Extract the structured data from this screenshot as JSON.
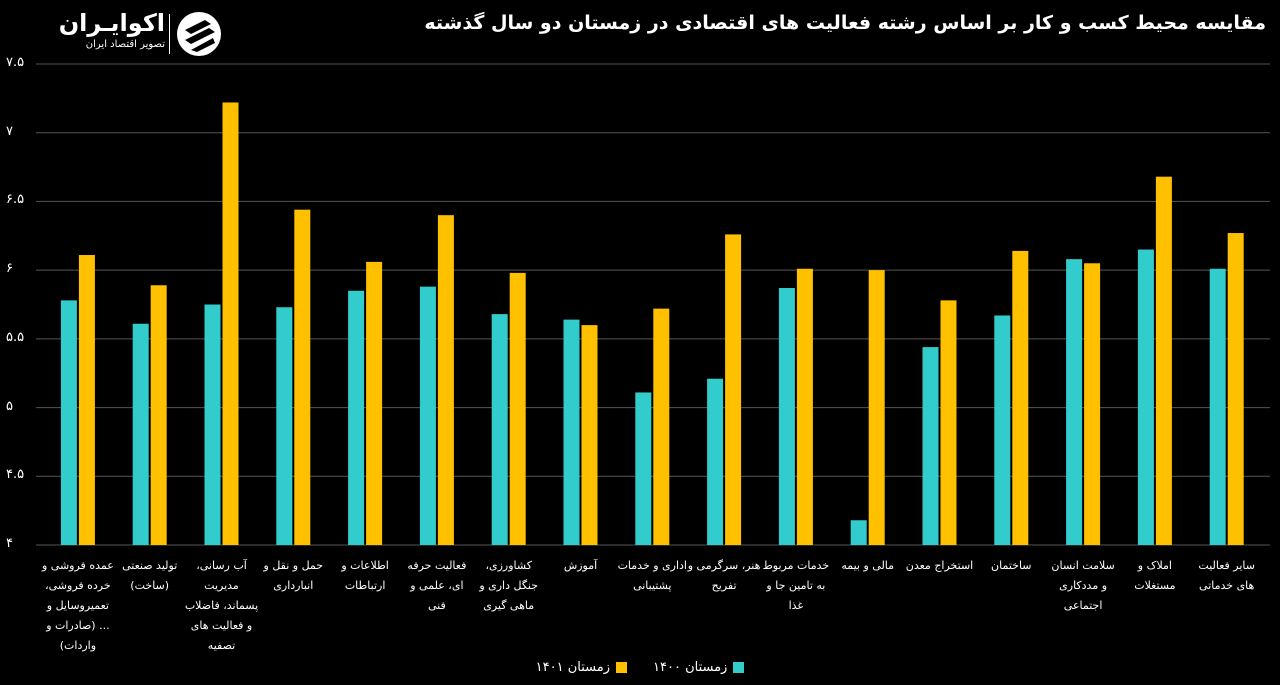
{
  "title": "مقایسه محیط کسب و کار بر اساس رشته فعالیت های اقتصادی در زمستان دو سال گذشته",
  "logo": {
    "name": "اکوایـران",
    "tagline": "تصویر اقتصاد ایران",
    "mark_icon": "ecoiran-logo-icon"
  },
  "colors": {
    "background": "#000000",
    "series1": "#33cccc",
    "series2": "#ffc000",
    "grid": "#555555"
  },
  "chart_data": {
    "type": "bar",
    "ylim": [
      4,
      7.5
    ],
    "yticks": [
      "۴",
      "۴.۵",
      "۵",
      "۵.۵",
      "۶",
      "۶.۵",
      "۷",
      "۷.۵"
    ],
    "ytick_values": [
      4,
      4.5,
      5,
      5.5,
      6,
      6.5,
      7,
      7.5
    ],
    "grid": true,
    "legend_position": "bottom-center",
    "categories": [
      "عمده فروشی و خرده فروشی، تعمیروسایل و ... (صادرات و واردات)",
      "تولید صنعتی (ساخت)",
      "آب رسانی، مدیریت پسماند، فاضلاب و فعالیت های تصفیه",
      "حمل و نقل و انبارداری",
      "اطلاعات و ارتباطات",
      "فعالیت حرفه ای، علمی و فنی",
      "کشاورزی، جنگل داری و ماهی گیری",
      "آموزش",
      "اداری و خدمات پشتیبانی",
      "هنر، سرگرمی و تفریح",
      "خدمات مربوط به تامین جا و غذا",
      "مالی و بیمه",
      "استخراج معدن",
      "ساختمان",
      "سلامت انسان و مددکاری اجتماعی",
      "املاک و مستغلات",
      "سایر فعالیت های خدماتی"
    ],
    "category_lines": [
      [
        "عمده فروشی و",
        "خرده فروشی،",
        "تعمیروسایل و",
        "... (صادرات و",
        "واردات)"
      ],
      [
        "تولید صنعتی",
        "(ساخت)"
      ],
      [
        "آب رسانی،",
        "مدیریت",
        "پسماند، فاضلاب",
        "و فعالیت های",
        "تصفیه"
      ],
      [
        "حمل و نقل و",
        "انبارداری"
      ],
      [
        "اطلاعات و",
        "ارتباطات"
      ],
      [
        "فعالیت حرفه",
        "ای، علمی و",
        "فنی"
      ],
      [
        "کشاورزی،",
        "جنگل داری و",
        "ماهی گیری"
      ],
      [
        "آموزش"
      ],
      [
        "اداری و خدمات",
        "پشتیبانی"
      ],
      [
        "هنر، سرگرمی و",
        "تفریح"
      ],
      [
        "خدمات مربوط",
        "به تامین جا و",
        "غذا"
      ],
      [
        "مالی و بیمه"
      ],
      [
        "استخراج معدن"
      ],
      [
        "ساختمان"
      ],
      [
        "سلامت انسان",
        "و مددکاری",
        "اجتماعی"
      ],
      [
        "املاک و",
        "مستغلات"
      ],
      [
        "سایر فعالیت",
        "های خدماتی"
      ]
    ],
    "series": [
      {
        "name": "زمستان ۱۴۰۰",
        "values": [
          5.78,
          5.61,
          5.75,
          5.73,
          5.85,
          5.88,
          5.68,
          5.64,
          5.11,
          5.21,
          5.87,
          4.18,
          5.44,
          5.67,
          6.08,
          6.15,
          6.01
        ]
      },
      {
        "name": "زمستان ۱۴۰۱",
        "values": [
          6.11,
          5.89,
          7.22,
          6.44,
          6.06,
          6.4,
          5.98,
          5.6,
          5.72,
          6.26,
          6.01,
          6.0,
          5.78,
          6.14,
          6.05,
          6.68,
          6.27
        ]
      }
    ]
  }
}
